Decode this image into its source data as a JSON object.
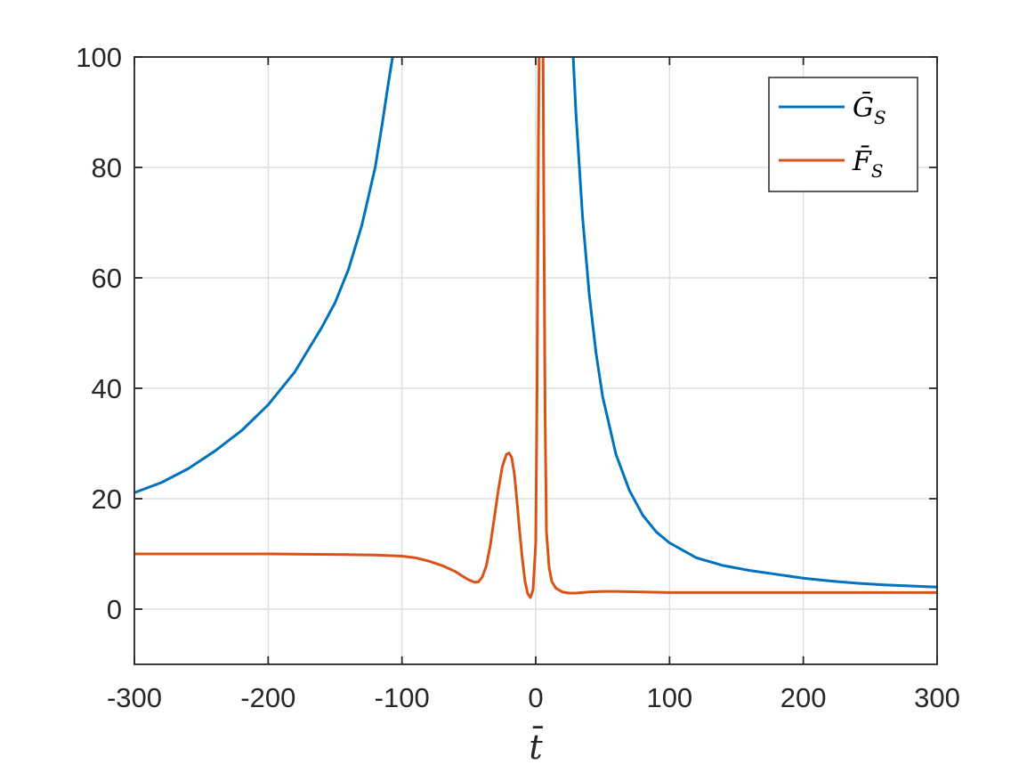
{
  "chart_data": {
    "type": "line",
    "xlabel": "t̄",
    "ylabel": "",
    "xlim": [
      -300,
      300
    ],
    "ylim": [
      -10,
      100
    ],
    "xticks": [
      -300,
      -200,
      -100,
      0,
      100,
      200,
      300
    ],
    "yticks": [
      0,
      20,
      40,
      60,
      80,
      100
    ],
    "xtick_labels": [
      "-300",
      "-200",
      "-100",
      "0",
      "100",
      "200",
      "300"
    ],
    "ytick_labels": [
      "0",
      "20",
      "40",
      "60",
      "80",
      "100"
    ],
    "grid": true,
    "legend_position": "top-right",
    "colors": {
      "G": "#0072bd",
      "F": "#d95319",
      "grid": "#dfdfdf",
      "axis": "#262626"
    },
    "series": [
      {
        "name": "Ḡ",
        "name_sub": "S",
        "color": "#0072bd",
        "segments": [
          [
            [
              -300,
              21.1
            ],
            [
              -280,
              22.9
            ],
            [
              -260,
              25.4
            ],
            [
              -240,
              28.6
            ],
            [
              -220,
              32.3
            ],
            [
              -200,
              37.0
            ],
            [
              -180,
              43.0
            ],
            [
              -160,
              51.0
            ],
            [
              -150,
              55.5
            ],
            [
              -140,
              61.5
            ],
            [
              -130,
              69.5
            ],
            [
              -120,
              80.0
            ],
            [
              -115,
              87.5
            ],
            [
              -110,
              95.5
            ],
            [
              -107,
              100.0
            ]
          ],
          [
            [
              28,
              100.0
            ],
            [
              30,
              90.0
            ],
            [
              35,
              71.0
            ],
            [
              40,
              57.0
            ],
            [
              45,
              46.5
            ],
            [
              50,
              38.5
            ],
            [
              60,
              28.0
            ],
            [
              70,
              21.5
            ],
            [
              80,
              17.0
            ],
            [
              90,
              14.0
            ],
            [
              100,
              12.0
            ],
            [
              120,
              9.3
            ],
            [
              140,
              7.9
            ],
            [
              160,
              7.0
            ],
            [
              180,
              6.3
            ],
            [
              200,
              5.6
            ],
            [
              220,
              5.1
            ],
            [
              240,
              4.7
            ],
            [
              260,
              4.4
            ],
            [
              280,
              4.2
            ],
            [
              300,
              4.0
            ]
          ]
        ]
      },
      {
        "name": "F̄",
        "name_sub": "S",
        "color": "#d95319",
        "segments": [
          [
            [
              -300,
              10.0
            ],
            [
              -250,
              10.0
            ],
            [
              -200,
              10.0
            ],
            [
              -150,
              9.9
            ],
            [
              -120,
              9.8
            ],
            [
              -100,
              9.6
            ],
            [
              -90,
              9.3
            ],
            [
              -80,
              8.7
            ],
            [
              -70,
              7.9
            ],
            [
              -60,
              6.8
            ],
            [
              -55,
              6.0
            ],
            [
              -50,
              5.3
            ],
            [
              -46,
              4.9
            ],
            [
              -43,
              4.9
            ],
            [
              -40,
              5.8
            ],
            [
              -37,
              7.8
            ],
            [
              -34,
              11.5
            ],
            [
              -31,
              16.5
            ],
            [
              -28,
              21.5
            ],
            [
              -25,
              25.8
            ],
            [
              -22,
              28.0
            ],
            [
              -20,
              28.3
            ],
            [
              -18,
              27.5
            ],
            [
              -16,
              24.5
            ],
            [
              -14,
              19.5
            ],
            [
              -12,
              14.0
            ],
            [
              -10,
              9.0
            ],
            [
              -8,
              5.0
            ],
            [
              -6,
              2.8
            ],
            [
              -4,
              2.1
            ],
            [
              -2,
              3.5
            ],
            [
              0,
              12.0
            ],
            [
              1,
              40.0
            ],
            [
              2,
              85.0
            ],
            [
              2.5,
              100.0
            ]
          ],
          [
            [
              5.5,
              100.0
            ],
            [
              6,
              75.0
            ],
            [
              7,
              35.0
            ],
            [
              8,
              14.0
            ],
            [
              10,
              7.5
            ],
            [
              12,
              5.0
            ],
            [
              15,
              3.8
            ],
            [
              20,
              3.1
            ],
            [
              25,
              2.9
            ],
            [
              30,
              2.9
            ],
            [
              40,
              3.1
            ],
            [
              50,
              3.2
            ],
            [
              60,
              3.2
            ],
            [
              80,
              3.1
            ],
            [
              100,
              3.0
            ],
            [
              150,
              3.0
            ],
            [
              200,
              3.0
            ],
            [
              250,
              3.0
            ],
            [
              300,
              3.0
            ]
          ]
        ]
      }
    ]
  }
}
